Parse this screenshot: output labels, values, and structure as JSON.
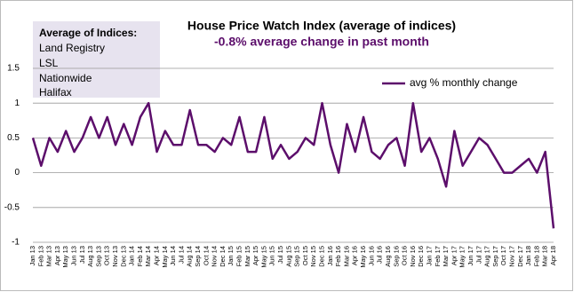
{
  "chart_data": {
    "type": "line",
    "title": "House Price Watch Index (average of indices)",
    "subtitle": "-0.8% average change in past month",
    "text_box": {
      "heading": "Average of Indices:",
      "items": [
        "Land Registry",
        "LSL",
        "Nationwide",
        "Halifax"
      ]
    },
    "categories": [
      "Jan 13",
      "Feb 13",
      "Mar 13",
      "Apr 13",
      "May 13",
      "Jun 13",
      "Jul 13",
      "Aug 13",
      "Sep 13",
      "Oct 13",
      "Nov 13",
      "Dec 13",
      "Jan 14",
      "Feb 14",
      "Mar 14",
      "Apr 14",
      "May 14",
      "Jun 14",
      "Jul 14",
      "Aug 14",
      "Sep 14",
      "Oct 14",
      "Nov 14",
      "Dec 14",
      "Jan 15",
      "Feb 15",
      "Mar 15",
      "Apr 15",
      "May 15",
      "Jun 15",
      "Jul 15",
      "Aug 15",
      "Sep 15",
      "Oct 15",
      "Nov 15",
      "Dec 15",
      "Jan 16",
      "Feb 16",
      "Mar 16",
      "Apr 16",
      "May 16",
      "Jun 16",
      "Jul 16",
      "Aug 16",
      "Sep 16",
      "Oct 16",
      "Nov 16",
      "Dec 16",
      "Jan 17",
      "Feb 17",
      "Mar 17",
      "Apr 17",
      "May 17",
      "Jun 17",
      "Jul 17",
      "Aug 17",
      "Sep 17",
      "Oct 17",
      "Nov 17",
      "Dec 17",
      "Jan 18",
      "Feb 18",
      "Mar 18",
      "Apr 18"
    ],
    "series": [
      {
        "name": "avg % monthly change",
        "color": "#5c0e6b",
        "values": [
          0.5,
          0.1,
          0.5,
          0.3,
          0.6,
          0.3,
          0.5,
          0.8,
          0.5,
          0.8,
          0.4,
          0.7,
          0.4,
          0.8,
          1.0,
          0.3,
          0.6,
          0.4,
          0.4,
          0.9,
          0.4,
          0.4,
          0.3,
          0.5,
          0.4,
          0.8,
          0.3,
          0.3,
          0.8,
          0.2,
          0.4,
          0.2,
          0.3,
          0.5,
          0.4,
          1.0,
          0.4,
          0.0,
          0.7,
          0.3,
          0.8,
          0.3,
          0.2,
          0.4,
          0.5,
          0.1,
          1.0,
          0.3,
          0.5,
          0.2,
          -0.2,
          0.6,
          0.1,
          0.3,
          0.5,
          0.4,
          0.2,
          0.0,
          0.0,
          0.1,
          0.2,
          0.0,
          0.3,
          -0.8
        ]
      }
    ],
    "ylim": [
      -1,
      1.5
    ],
    "yticks": [
      -1,
      -0.5,
      0,
      0.5,
      1,
      1.5
    ],
    "grid": true,
    "legend": "top-right"
  }
}
